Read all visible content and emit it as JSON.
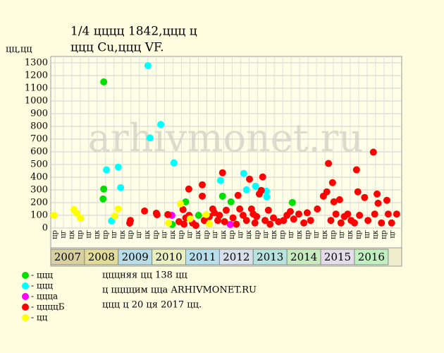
{
  "chart_data": {
    "type": "scatter",
    "title": "1/4 цццц 1842,ццц ц",
    "subtitle": "ццц Cu,ццц VF.",
    "ylabel": "цц,цц",
    "watermark": "arhivmonet.ru",
    "xlim": [
      2007,
      2017.4
    ],
    "ylim": [
      0,
      1350
    ],
    "yticks": [
      0,
      100,
      200,
      300,
      400,
      500,
      600,
      700,
      800,
      900,
      1000,
      1100,
      1200,
      1300
    ],
    "xticks": [
      {
        "value": 2007.125,
        "label": "цр"
      },
      {
        "value": 2007.375,
        "label": "цг"
      },
      {
        "value": 2007.625,
        "label": "цк"
      },
      {
        "value": 2007.875,
        "label": "цр"
      },
      {
        "value": 2008.125,
        "label": "цг"
      },
      {
        "value": 2008.375,
        "label": "цк"
      },
      {
        "value": 2008.625,
        "label": "цр"
      },
      {
        "value": 2008.875,
        "label": "цг"
      },
      {
        "value": 2009.125,
        "label": "цк"
      },
      {
        "value": 2009.375,
        "label": "цр"
      },
      {
        "value": 2009.625,
        "label": "цг"
      },
      {
        "value": 2009.875,
        "label": "цк"
      },
      {
        "value": 2010.125,
        "label": "цр"
      },
      {
        "value": 2010.375,
        "label": "цг"
      },
      {
        "value": 2010.625,
        "label": "цк"
      },
      {
        "value": 2010.875,
        "label": "цр"
      },
      {
        "value": 2011.125,
        "label": "цг"
      },
      {
        "value": 2011.375,
        "label": "цк"
      },
      {
        "value": 2011.625,
        "label": "цр"
      },
      {
        "value": 2011.875,
        "label": "цг"
      },
      {
        "value": 2012.125,
        "label": "цк"
      },
      {
        "value": 2012.375,
        "label": "цр"
      },
      {
        "value": 2012.625,
        "label": "цг"
      },
      {
        "value": 2012.875,
        "label": "цк"
      },
      {
        "value": 2013.125,
        "label": "цр"
      },
      {
        "value": 2013.375,
        "label": "цг"
      },
      {
        "value": 2013.625,
        "label": "цк"
      },
      {
        "value": 2013.875,
        "label": "цр"
      },
      {
        "value": 2014.125,
        "label": "цг"
      },
      {
        "value": 2014.375,
        "label": "цк"
      },
      {
        "value": 2014.625,
        "label": "цр"
      },
      {
        "value": 2014.875,
        "label": "цг"
      },
      {
        "value": 2015.125,
        "label": "цк"
      },
      {
        "value": 2015.375,
        "label": "цр"
      },
      {
        "value": 2015.625,
        "label": "цг"
      },
      {
        "value": 2015.875,
        "label": "цк"
      },
      {
        "value": 2016.125,
        "label": "цр"
      },
      {
        "value": 2016.375,
        "label": "цг"
      },
      {
        "value": 2016.625,
        "label": "цк"
      },
      {
        "value": 2016.875,
        "label": "цр"
      },
      {
        "value": 2017.125,
        "label": "цг"
      }
    ],
    "years": [
      2007,
      2008,
      2009,
      2010,
      2011,
      2012,
      2013,
      2014,
      2015,
      2016
    ],
    "year_colors": [
      "#d8d0a0",
      "#e2dc98",
      "#b8dce8",
      "#eaf0c0",
      "#b8e0ec",
      "#d8e0ec",
      "#b8e4e0",
      "#c8ecc0",
      "#e4dce8",
      "#c0f0c0"
    ],
    "grid": true,
    "notes": [
      "цццняя цц 138 цц",
      "ц ццццим цца ARHIVMONET.RU",
      "ццц ц 20 ця 2017 цц."
    ],
    "series": [
      {
        "name": "- ццц",
        "color": "#00e000",
        "x": [
          2008.57,
          2008.57,
          2008.55,
          2011.0,
          2012.09,
          2012.34,
          2014.16,
          2010.6,
          2011.38
        ],
        "values": [
          1150,
          307,
          229,
          206,
          251,
          206,
          201,
          28,
          100
        ]
      },
      {
        "name": "- ццц",
        "color": "#00ffff",
        "x": [
          2009.88,
          2010.26,
          2009.94,
          2010.65,
          2008.65,
          2009.0,
          2009.07,
          2008.8,
          2012.03,
          2012.72,
          2012.8,
          2013.07,
          2013.39,
          2013.4
        ],
        "values": [
          1278,
          815,
          709,
          513,
          458,
          480,
          318,
          56,
          374,
          430,
          301,
          329,
          290,
          246
        ]
      },
      {
        "name": "- цццa",
        "color": "#ff00ff",
        "x": [
          2010.59,
          2012.32
        ],
        "values": [
          100,
          28
        ]
      },
      {
        "name": "- ццццБ",
        "color": "#ff0000",
        "x": [
          2009.34,
          2009.36,
          2009.78,
          2010.13,
          2010.15,
          2010.47,
          2010.8,
          2010.92,
          2010.95,
          2011.0,
          2011.09,
          2011.1,
          2011.2,
          2011.3,
          2011.49,
          2011.49,
          2011.55,
          2011.7,
          2011.8,
          2011.85,
          2011.95,
          2012.0,
          2012.09,
          2012.15,
          2012.2,
          2012.4,
          2012.5,
          2012.55,
          2012.6,
          2012.7,
          2012.8,
          2012.89,
          2012.95,
          2013.0,
          2013.05,
          2013.1,
          2013.18,
          2013.24,
          2013.28,
          2013.35,
          2013.45,
          2013.5,
          2013.6,
          2013.75,
          2013.9,
          2014.0,
          2014.1,
          2014.2,
          2014.35,
          2014.5,
          2014.6,
          2014.7,
          2014.9,
          2015.08,
          2015.18,
          2015.23,
          2015.3,
          2015.35,
          2015.39,
          2015.45,
          2015.56,
          2015.6,
          2015.7,
          2015.8,
          2015.9,
          2016.0,
          2016.06,
          2016.1,
          2016.15,
          2016.3,
          2016.4,
          2016.56,
          2016.6,
          2016.67,
          2016.7,
          2016.8,
          2016.96,
          2017.0,
          2017.1,
          2017.25
        ],
        "values": [
          39,
          60,
          134,
          117,
          105,
          106,
          50,
          145,
          30,
          80,
          307,
          100,
          40,
          20,
          340,
          251,
          60,
          90,
          150,
          120,
          60,
          100,
          435,
          50,
          140,
          80,
          30,
          257,
          150,
          100,
          60,
          385,
          150,
          110,
          40,
          90,
          268,
          296,
          402,
          60,
          140,
          30,
          80,
          50,
          60,
          100,
          130,
          70,
          110,
          40,
          120,
          60,
          150,
          251,
          285,
          508,
          60,
          357,
          206,
          110,
          223,
          40,
          90,
          110,
          60,
          40,
          458,
          285,
          100,
          240,
          60,
          597,
          110,
          268,
          195,
          40,
          218,
          110,
          40,
          110
        ]
      },
      {
        "name": "- цц",
        "color": "#ffff00",
        "x": [
          2007.1,
          2007.69,
          2007.77,
          2007.88,
          2008.9,
          2009.0,
          2010.84,
          2010.49,
          2011.61,
          2011.7,
          2011.13
        ],
        "values": [
          100,
          145,
          117,
          78,
          95,
          151,
          190,
          39,
          106,
          33,
          73
        ]
      }
    ]
  }
}
